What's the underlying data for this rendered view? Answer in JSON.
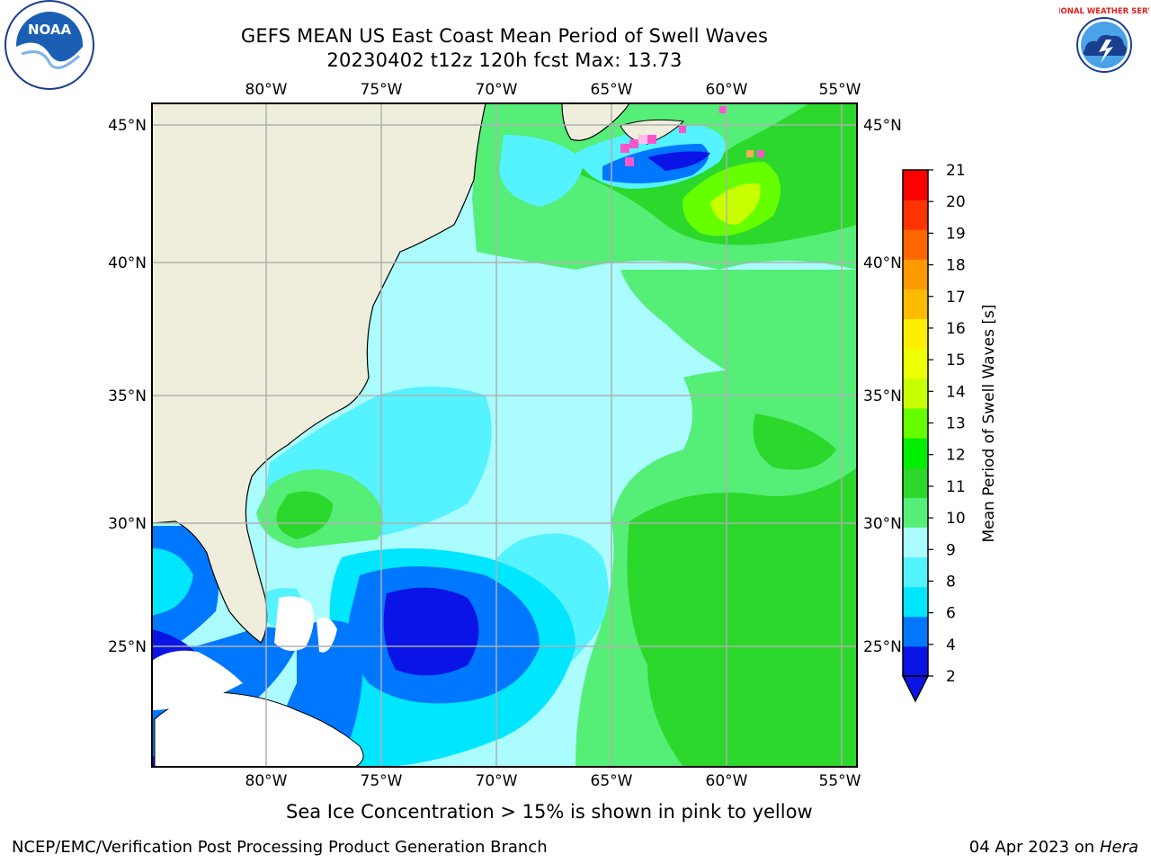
{
  "header": {
    "title_line1": "GEFS MEAN US East Coast Mean Period of Swell Waves",
    "title_line2": "20230402 t12z 120h fcst   Max: 13.73"
  },
  "logos": {
    "left": {
      "icon": "noaa-logo",
      "text": "NOAA"
    },
    "right": {
      "icon": "national-weather-service-logo",
      "text": "NATIONAL WEATHER SERVICE"
    }
  },
  "map": {
    "lon_labels": [
      "80°W",
      "75°W",
      "70°W",
      "65°W",
      "60°W",
      "55°W"
    ],
    "lat_labels": [
      "45°N",
      "40°N",
      "35°N",
      "30°N",
      "25°N"
    ],
    "land_color": "#efeedc",
    "grid_color": "#b0b0b0"
  },
  "colorbar": {
    "label": "Mean Period of Swell Waves [s]",
    "ticks": [
      "2",
      "4",
      "6",
      "8",
      "9",
      "10",
      "11",
      "12",
      "13",
      "14",
      "15",
      "16",
      "17",
      "18",
      "19",
      "20",
      "21"
    ],
    "colors": [
      "#0a14e6",
      "#0077ff",
      "#00e6ff",
      "#55f2ff",
      "#aafcff",
      "#55ee77",
      "#2bd82b",
      "#00ee00",
      "#66ff00",
      "#c8ff00",
      "#eeff00",
      "#ffee00",
      "#ffbb00",
      "#ff9900",
      "#ff6600",
      "#ff3300",
      "#ff0000"
    ],
    "under_color": "#0a14e6"
  },
  "note": "Sea Ice Concentration > 15% is shown in pink to yellow",
  "footer": {
    "left": "NCEP/EMC/Verification Post Processing Product Generation Branch",
    "right_date": "04 Apr 2023 on ",
    "right_host": "Hera"
  }
}
